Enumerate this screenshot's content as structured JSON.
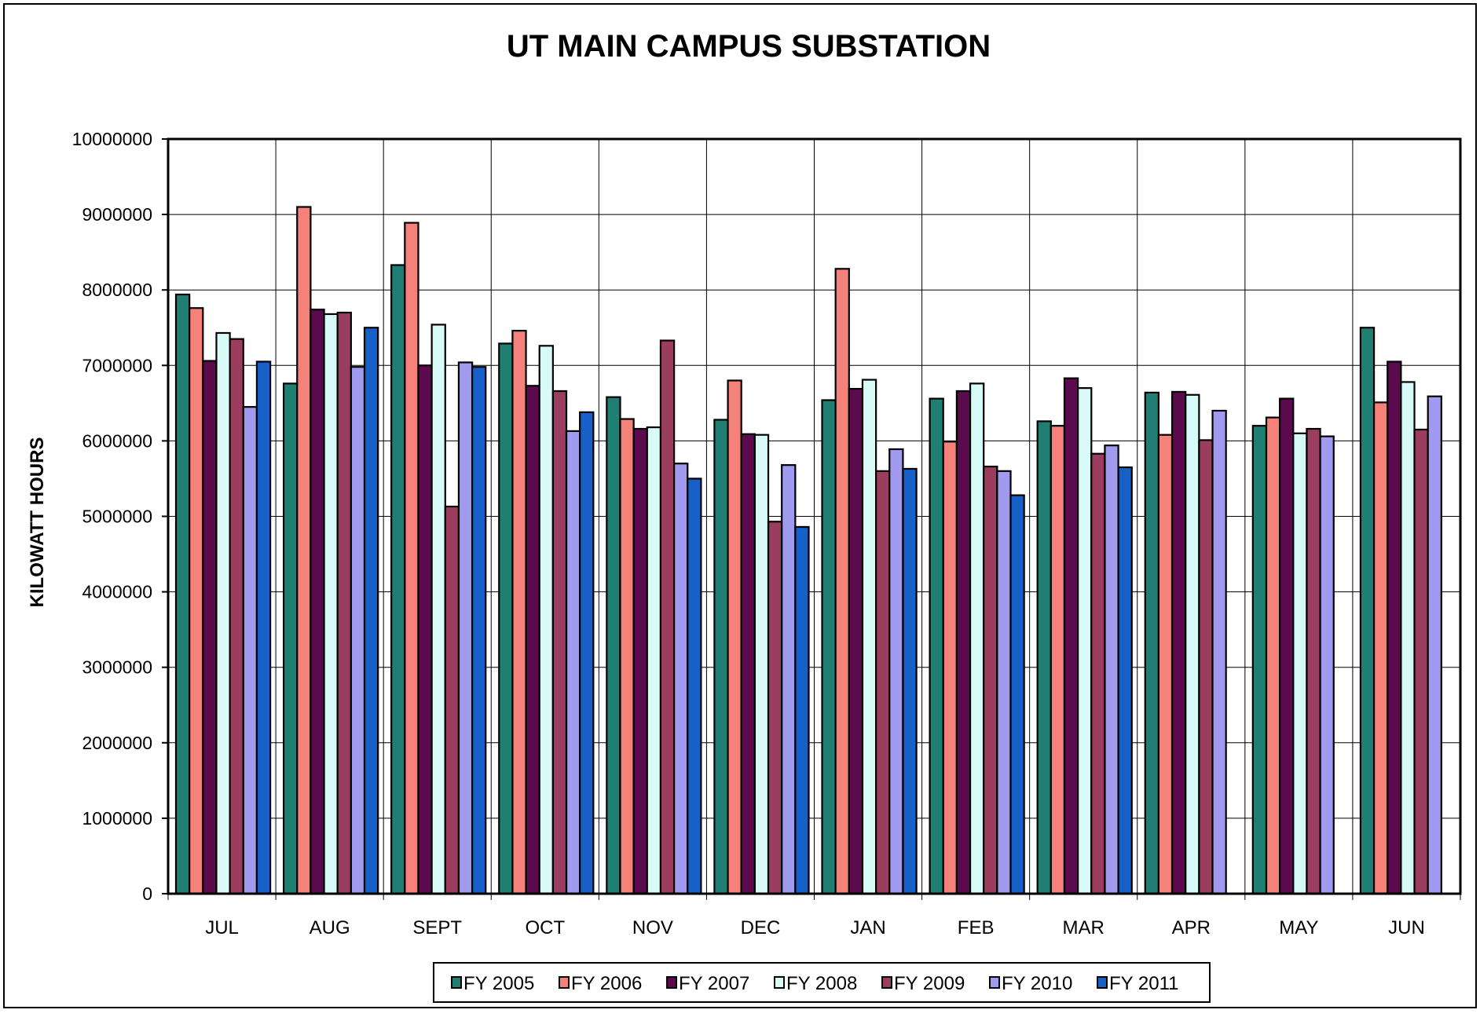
{
  "chart_data": {
    "type": "bar",
    "title": "UT MAIN CAMPUS SUBSTATION",
    "xlabel": "",
    "ylabel": "KILOWATT HOURS",
    "ylim": [
      0,
      10000000
    ],
    "yticks": [
      "0",
      "1000000",
      "2000000",
      "3000000",
      "4000000",
      "5000000",
      "6000000",
      "7000000",
      "8000000",
      "9000000",
      "10000000"
    ],
    "grid": true,
    "legend": "bottom",
    "categories": [
      "JUL",
      "AUG",
      "SEPT",
      "OCT",
      "NOV",
      "DEC",
      "JAN",
      "FEB",
      "MAR",
      "APR",
      "MAY",
      "JUN"
    ],
    "series": [
      {
        "name": "FY 2005",
        "color": "#1f7f73",
        "values": [
          7940000,
          6760000,
          8330000,
          7290000,
          6580000,
          6280000,
          6540000,
          6560000,
          6260000,
          6640000,
          6200000,
          7500000
        ]
      },
      {
        "name": "FY 2006",
        "color": "#f4817a",
        "values": [
          7760000,
          9100000,
          8890000,
          7460000,
          6290000,
          6800000,
          8280000,
          5990000,
          6200000,
          6080000,
          6310000,
          6510000
        ]
      },
      {
        "name": "FY 2007",
        "color": "#5c0a4e",
        "values": [
          7060000,
          7740000,
          7000000,
          6730000,
          6160000,
          6090000,
          6690000,
          6660000,
          6830000,
          6650000,
          6560000,
          7050000
        ]
      },
      {
        "name": "FY 2008",
        "color": "#d9fbf7",
        "values": [
          7430000,
          7680000,
          7540000,
          7260000,
          6180000,
          6080000,
          6810000,
          6760000,
          6700000,
          6610000,
          6100000,
          6780000
        ]
      },
      {
        "name": "FY 2009",
        "color": "#9b3d5e",
        "values": [
          7350000,
          7700000,
          5130000,
          6660000,
          7330000,
          4930000,
          5600000,
          5660000,
          5830000,
          6010000,
          6160000,
          6150000
        ]
      },
      {
        "name": "FY 2010",
        "color": "#a19bef",
        "values": [
          6450000,
          6980000,
          7040000,
          6130000,
          5700000,
          5680000,
          5890000,
          5600000,
          5940000,
          6400000,
          6060000,
          6590000
        ]
      },
      {
        "name": "FY 2011",
        "color": "#1660c8",
        "values": [
          7050000,
          7500000,
          6980000,
          6380000,
          5500000,
          4860000,
          5630000,
          5280000,
          5650000,
          null,
          null,
          null
        ]
      }
    ]
  }
}
